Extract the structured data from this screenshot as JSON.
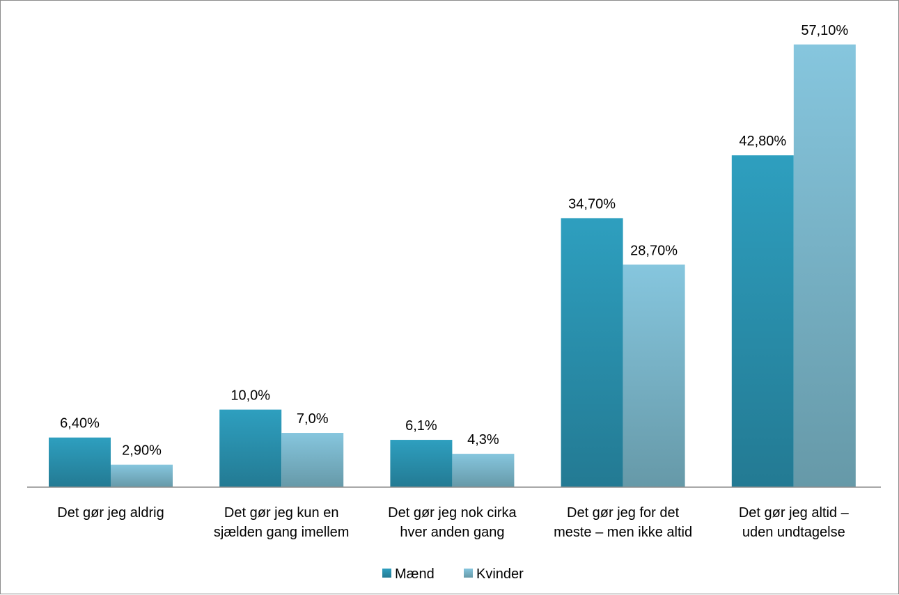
{
  "chart_data": {
    "type": "bar",
    "categories": [
      [
        "Det gør jeg aldrig"
      ],
      [
        "Det gør jeg kun en",
        "sjælden gang imellem"
      ],
      [
        "Det gør jeg nok cirka",
        "hver anden gang"
      ],
      [
        "Det gør jeg for det",
        "meste – men ikke altid"
      ],
      [
        "Det gør jeg altid –",
        "uden undtagelse"
      ]
    ],
    "series": [
      {
        "name": "Mænd",
        "values": [
          6.4,
          10.0,
          6.1,
          34.7,
          42.8
        ],
        "labels": [
          "6,40%",
          "10,0%",
          "6,1%",
          "34,70%",
          "42,80%"
        ],
        "color_top": "#2e9fbf",
        "color_bottom": "#237a93"
      },
      {
        "name": "Kvinder",
        "values": [
          2.9,
          7.0,
          4.3,
          28.7,
          57.1
        ],
        "labels": [
          "2,90%",
          "7,0%",
          "4,3%",
          "28,70%",
          "57,10%"
        ],
        "color_top": "#86c6de",
        "color_bottom": "#6699a8"
      }
    ],
    "ylim": [
      0,
      60
    ],
    "grid": false,
    "legend_position": "bottom"
  }
}
